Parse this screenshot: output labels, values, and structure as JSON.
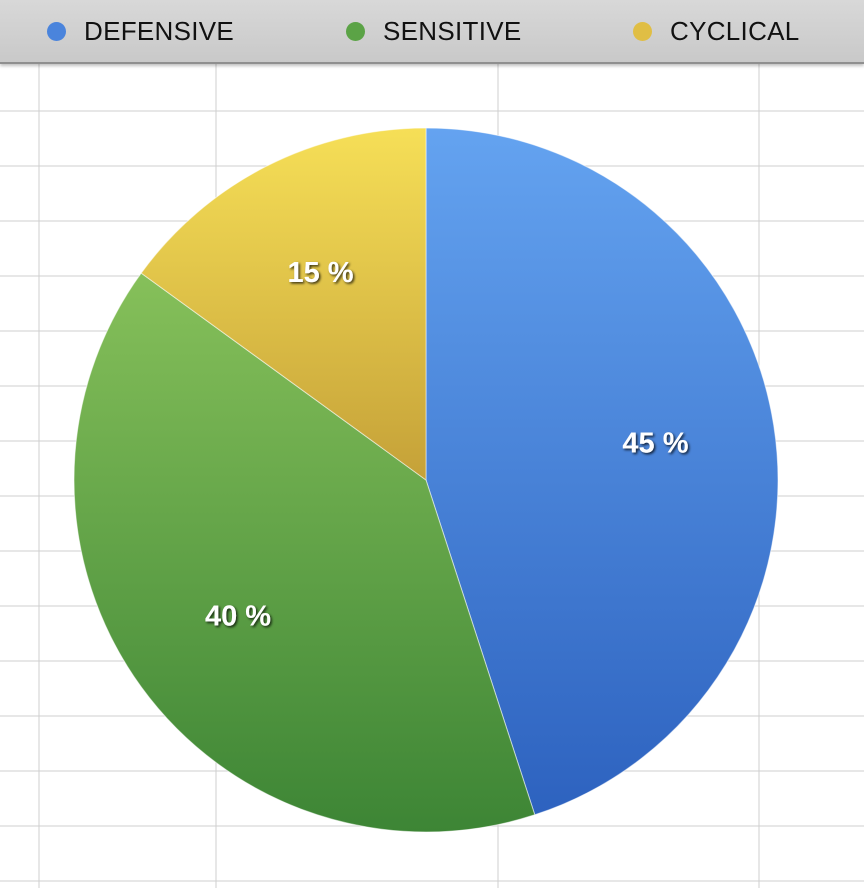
{
  "chart_data": {
    "type": "pie",
    "categories": [
      "DEFENSIVE",
      "SENSITIVE",
      "CYCLICAL"
    ],
    "values": [
      45,
      40,
      15
    ],
    "labels": [
      "45 %",
      "40 %",
      "15 %"
    ],
    "colors": [
      "#4a84dc",
      "#5ba346",
      "#e0be44"
    ],
    "legend_position": "top",
    "grid": true
  }
}
